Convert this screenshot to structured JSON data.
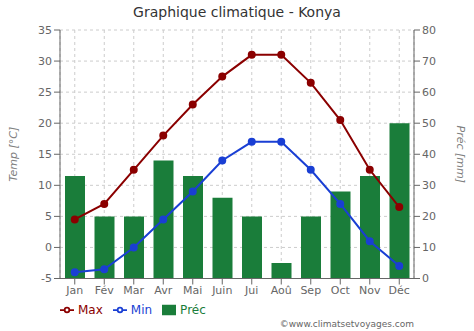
{
  "chart_data": {
    "type": "combo",
    "title": "Graphique climatique - Konya",
    "categories": [
      "Jan",
      "Fév",
      "Mar",
      "Avr",
      "Mai",
      "Juin",
      "Jui",
      "Aoû",
      "Sep",
      "Oct",
      "Nov",
      "Déc"
    ],
    "series": [
      {
        "name": "Préc",
        "type": "bar",
        "axis": "y2",
        "color": "#1a7d3a",
        "values": [
          33,
          20,
          20,
          38,
          33,
          26,
          20,
          5,
          20,
          28,
          33,
          50
        ]
      },
      {
        "name": "Min",
        "type": "line",
        "color": "#1a3fd4",
        "marker": "circle",
        "values": [
          -4,
          -3.5,
          0,
          4.5,
          9,
          14,
          17,
          17,
          12.5,
          7,
          1,
          -3
        ]
      },
      {
        "name": "Max",
        "type": "line",
        "color": "#8b0000",
        "marker": "circle",
        "values": [
          4.5,
          7,
          12.5,
          18,
          23,
          27.5,
          31,
          31,
          26.5,
          20.5,
          12.5,
          6.5
        ]
      }
    ],
    "ylabel": "Temp [°C]",
    "y2label": "Préc [mm]",
    "ylim": [
      -5,
      35
    ],
    "yticks": [
      -5,
      0,
      5,
      10,
      15,
      20,
      25,
      30,
      35
    ],
    "y2lim": [
      0,
      80
    ],
    "y2ticks": [
      0,
      10,
      20,
      30,
      40,
      50,
      60,
      70,
      80
    ],
    "grid": true,
    "legend": "bottom",
    "annotations": [
      "©www.climatsetvoyages.com"
    ]
  }
}
